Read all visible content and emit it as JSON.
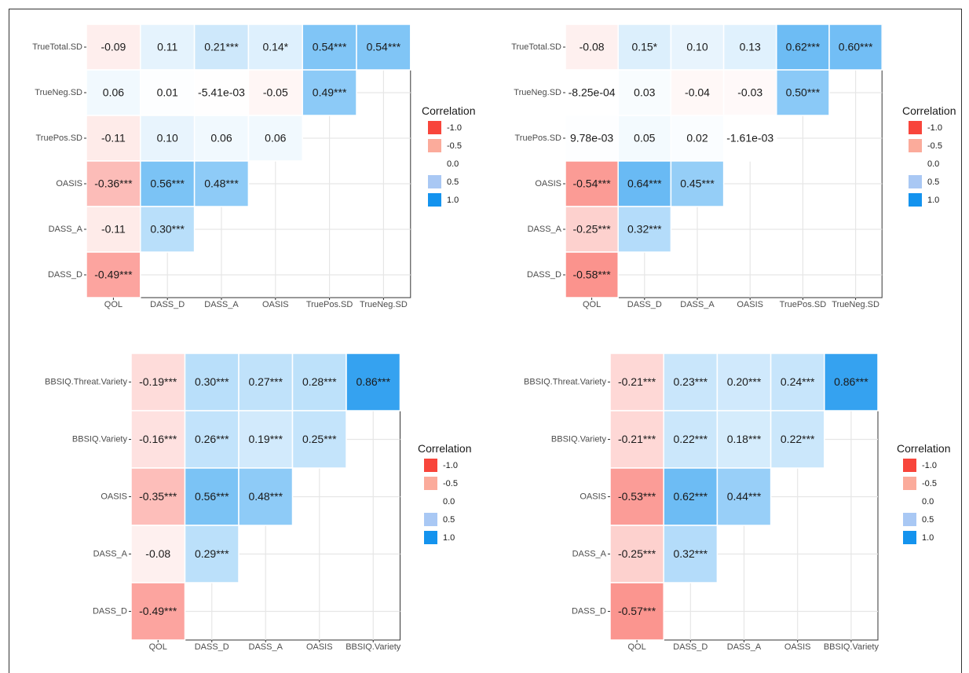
{
  "legend": {
    "title": "Correlation",
    "levels": [
      {
        "value": -1.0,
        "label": "-1.0",
        "color": "#f8453b"
      },
      {
        "value": -0.5,
        "label": "-0.5",
        "color": "#fbab9b"
      },
      {
        "value": 0.0,
        "label": "0.0",
        "color": "#ffffff"
      },
      {
        "value": 0.5,
        "label": "0.5",
        "color": "#a9c8f4"
      },
      {
        "value": 1.0,
        "label": "1.0",
        "color": "#1493ee"
      }
    ]
  },
  "chart_data": [
    {
      "type": "heatmap",
      "rows": [
        "TrueTotal.SD",
        "TrueNeg.SD",
        "TruePos.SD",
        "OASIS",
        "DASS_A",
        "DASS_D"
      ],
      "cols": [
        "QOL",
        "DASS_D",
        "DASS_A",
        "OASIS",
        "TruePos.SD",
        "TrueNeg.SD"
      ],
      "cells": [
        [
          {
            "v": -0.09,
            "t": "-0.09"
          },
          {
            "v": 0.11,
            "t": "0.11"
          },
          {
            "v": 0.21,
            "t": "0.21***"
          },
          {
            "v": 0.14,
            "t": "0.14*"
          },
          {
            "v": 0.54,
            "t": "0.54***"
          },
          {
            "v": 0.54,
            "t": "0.54***"
          }
        ],
        [
          {
            "v": 0.06,
            "t": "0.06"
          },
          {
            "v": 0.01,
            "t": "0.01"
          },
          {
            "v": -0.00541,
            "t": "-5.41e-03"
          },
          {
            "v": -0.05,
            "t": "-0.05"
          },
          {
            "v": 0.49,
            "t": "0.49***"
          }
        ],
        [
          {
            "v": -0.11,
            "t": "-0.11"
          },
          {
            "v": 0.1,
            "t": "0.10"
          },
          {
            "v": 0.06,
            "t": "0.06"
          },
          {
            "v": 0.06,
            "t": "0.06"
          }
        ],
        [
          {
            "v": -0.36,
            "t": "-0.36***"
          },
          {
            "v": 0.56,
            "t": "0.56***"
          },
          {
            "v": 0.48,
            "t": "0.48***"
          }
        ],
        [
          {
            "v": -0.11,
            "t": "-0.11"
          },
          {
            "v": 0.3,
            "t": "0.30***"
          }
        ],
        [
          {
            "v": -0.49,
            "t": "-0.49***"
          }
        ]
      ]
    },
    {
      "type": "heatmap",
      "rows": [
        "TrueTotal.SD",
        "TrueNeg.SD",
        "TruePos.SD",
        "OASIS",
        "DASS_A",
        "DASS_D"
      ],
      "cols": [
        "QOL",
        "DASS_D",
        "DASS_A",
        "OASIS",
        "TruePos.SD",
        "TrueNeg.SD"
      ],
      "cells": [
        [
          {
            "v": -0.08,
            "t": "-0.08"
          },
          {
            "v": 0.15,
            "t": "0.15*"
          },
          {
            "v": 0.1,
            "t": "0.10"
          },
          {
            "v": 0.13,
            "t": "0.13"
          },
          {
            "v": 0.62,
            "t": "0.62***"
          },
          {
            "v": 0.6,
            "t": "0.60***"
          }
        ],
        [
          {
            "v": -0.000825,
            "t": "-8.25e-04"
          },
          {
            "v": 0.03,
            "t": "0.03"
          },
          {
            "v": -0.04,
            "t": "-0.04"
          },
          {
            "v": -0.03,
            "t": "-0.03"
          },
          {
            "v": 0.5,
            "t": "0.50***"
          }
        ],
        [
          {
            "v": 0.00978,
            "t": "9.78e-03"
          },
          {
            "v": 0.05,
            "t": "0.05"
          },
          {
            "v": 0.02,
            "t": "0.02"
          },
          {
            "v": -0.00161,
            "t": "-1.61e-03"
          }
        ],
        [
          {
            "v": -0.54,
            "t": "-0.54***"
          },
          {
            "v": 0.64,
            "t": "0.64***"
          },
          {
            "v": 0.45,
            "t": "0.45***"
          }
        ],
        [
          {
            "v": -0.25,
            "t": "-0.25***"
          },
          {
            "v": 0.32,
            "t": "0.32***"
          }
        ],
        [
          {
            "v": -0.58,
            "t": "-0.58***"
          }
        ]
      ]
    },
    {
      "type": "heatmap",
      "rows": [
        "BBSIQ.Threat.Variety",
        "BBSIQ.Variety",
        "OASIS",
        "DASS_A",
        "DASS_D"
      ],
      "cols": [
        "QOL",
        "DASS_D",
        "DASS_A",
        "OASIS",
        "BBSIQ.Variety"
      ],
      "cells": [
        [
          {
            "v": -0.19,
            "t": "-0.19***"
          },
          {
            "v": 0.3,
            "t": "0.30***"
          },
          {
            "v": 0.27,
            "t": "0.27***"
          },
          {
            "v": 0.28,
            "t": "0.28***"
          },
          {
            "v": 0.86,
            "t": "0.86***"
          }
        ],
        [
          {
            "v": -0.16,
            "t": "-0.16***"
          },
          {
            "v": 0.26,
            "t": "0.26***"
          },
          {
            "v": 0.19,
            "t": "0.19***"
          },
          {
            "v": 0.25,
            "t": "0.25***"
          }
        ],
        [
          {
            "v": -0.35,
            "t": "-0.35***"
          },
          {
            "v": 0.56,
            "t": "0.56***"
          },
          {
            "v": 0.48,
            "t": "0.48***"
          }
        ],
        [
          {
            "v": -0.08,
            "t": "-0.08"
          },
          {
            "v": 0.29,
            "t": "0.29***"
          }
        ],
        [
          {
            "v": -0.49,
            "t": "-0.49***"
          }
        ]
      ]
    },
    {
      "type": "heatmap",
      "rows": [
        "BBSIQ.Threat.Variety",
        "BBSIQ.Variety",
        "OASIS",
        "DASS_A",
        "DASS_D"
      ],
      "cols": [
        "QOL",
        "DASS_D",
        "DASS_A",
        "OASIS",
        "BBSIQ.Variety"
      ],
      "cells": [
        [
          {
            "v": -0.21,
            "t": "-0.21***"
          },
          {
            "v": 0.23,
            "t": "0.23***"
          },
          {
            "v": 0.2,
            "t": "0.20***"
          },
          {
            "v": 0.24,
            "t": "0.24***"
          },
          {
            "v": 0.86,
            "t": "0.86***"
          }
        ],
        [
          {
            "v": -0.21,
            "t": "-0.21***"
          },
          {
            "v": 0.22,
            "t": "0.22***"
          },
          {
            "v": 0.18,
            "t": "0.18***"
          },
          {
            "v": 0.22,
            "t": "0.22***"
          }
        ],
        [
          {
            "v": -0.53,
            "t": "-0.53***"
          },
          {
            "v": 0.62,
            "t": "0.62***"
          },
          {
            "v": 0.44,
            "t": "0.44***"
          }
        ],
        [
          {
            "v": -0.25,
            "t": "-0.25***"
          },
          {
            "v": 0.32,
            "t": "0.32***"
          }
        ],
        [
          {
            "v": -0.57,
            "t": "-0.57***"
          }
        ]
      ]
    }
  ]
}
